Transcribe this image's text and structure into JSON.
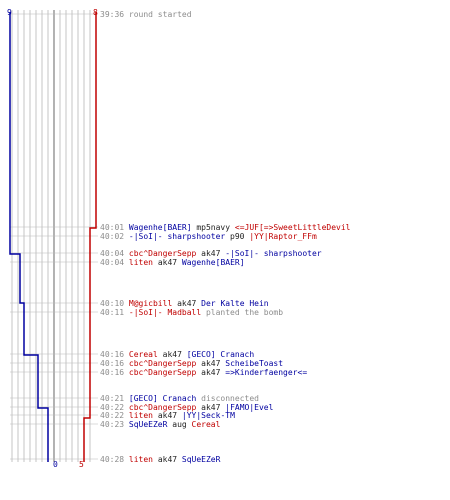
{
  "colors": {
    "blue_team": "#0000a0",
    "red_team": "#c00000",
    "grid": "#b8b8b8",
    "time": "#8c8c8c"
  },
  "scores": {
    "blue_start": "9",
    "red_start": "8",
    "blue_end": "0",
    "red_end": "5"
  },
  "events": [
    {
      "time": "39:36",
      "parts": [
        {
          "text": "round started",
          "style": "gray"
        }
      ]
    },
    {
      "time": "40:01",
      "parts": [
        {
          "text": "Wagenhe[BAER]",
          "style": "blue"
        },
        {
          "text": " mp5navy ",
          "style": "black"
        },
        {
          "text": "<=JUF[=>SweetLittleDevil",
          "style": "red"
        }
      ]
    },
    {
      "time": "40:02",
      "parts": [
        {
          "text": "-|SoI|- sharpshooter",
          "style": "blue"
        },
        {
          "text": " p90 ",
          "style": "black"
        },
        {
          "text": "|YY|Raptor_FFm",
          "style": "red"
        }
      ]
    },
    {
      "time": "40:04",
      "parts": [
        {
          "text": "cbc^DangerSepp",
          "style": "red"
        },
        {
          "text": " ak47 ",
          "style": "black"
        },
        {
          "text": "-|SoI|- sharpshooter",
          "style": "blue"
        }
      ]
    },
    {
      "time": "40:04",
      "parts": [
        {
          "text": "liten",
          "style": "red"
        },
        {
          "text": " ak47 ",
          "style": "black"
        },
        {
          "text": "Wagenhe[BAER]",
          "style": "blue"
        }
      ]
    },
    {
      "time": "40:10",
      "parts": [
        {
          "text": "M@gicbill",
          "style": "red"
        },
        {
          "text": " ak47 ",
          "style": "black"
        },
        {
          "text": "Der Kalte Hein",
          "style": "blue"
        }
      ]
    },
    {
      "time": "40:11",
      "parts": [
        {
          "text": "-|SoI|- Madball",
          "style": "red"
        },
        {
          "text": " planted the bomb",
          "style": "gray"
        }
      ]
    },
    {
      "time": "40:16",
      "parts": [
        {
          "text": "Cereal",
          "style": "red"
        },
        {
          "text": " ak47 ",
          "style": "black"
        },
        {
          "text": "[GECO] Cranach",
          "style": "blue"
        }
      ]
    },
    {
      "time": "40:16",
      "parts": [
        {
          "text": "cbc^DangerSepp",
          "style": "red"
        },
        {
          "text": " ak47 ",
          "style": "black"
        },
        {
          "text": "ScheibeToast",
          "style": "blue"
        }
      ]
    },
    {
      "time": "40:16",
      "parts": [
        {
          "text": "cbc^DangerSepp",
          "style": "red"
        },
        {
          "text": " ak47 ",
          "style": "black"
        },
        {
          "text": "=>Kinderfaenger<=",
          "style": "blue"
        }
      ]
    },
    {
      "time": "40:21",
      "parts": [
        {
          "text": "[GECO] Cranach",
          "style": "blue"
        },
        {
          "text": " disconnected",
          "style": "gray"
        }
      ]
    },
    {
      "time": "40:22",
      "parts": [
        {
          "text": "cbc^DangerSepp",
          "style": "red"
        },
        {
          "text": " ak47 ",
          "style": "black"
        },
        {
          "text": "|FAMO|Evel",
          "style": "blue"
        }
      ]
    },
    {
      "time": "40:22",
      "parts": [
        {
          "text": "liten",
          "style": "red"
        },
        {
          "text": " ak47 ",
          "style": "black"
        },
        {
          "text": "|YY|Seck-TM",
          "style": "blue"
        }
      ]
    },
    {
      "time": "40:23",
      "parts": [
        {
          "text": "SqUeEZeR",
          "style": "blue"
        },
        {
          "text": " aug ",
          "style": "black"
        },
        {
          "text": "Cereal",
          "style": "red"
        }
      ]
    },
    {
      "time": "40:28",
      "parts": [
        {
          "text": "liten",
          "style": "red"
        },
        {
          "text": " ak47 ",
          "style": "black"
        },
        {
          "text": "SqUeEZeR",
          "style": "blue"
        }
      ]
    }
  ]
}
